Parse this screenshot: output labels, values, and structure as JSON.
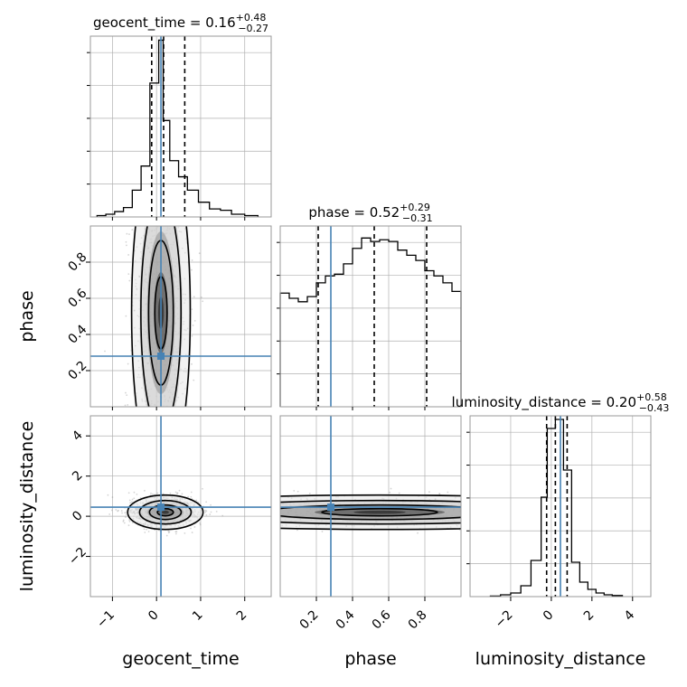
{
  "colors": {
    "truth": "#4682b4",
    "hist": "#000000",
    "frame": "#999999",
    "grid": "#b0b0b0",
    "density": "#000000"
  },
  "chart_data": [
    {
      "type": "histogram",
      "panel": "geocent_time-marginal",
      "title": {
        "param": "geocent_time",
        "median": "0.16",
        "plus": "+0.48",
        "minus": "−0.27"
      },
      "xlim": [
        -1.5,
        2.6
      ],
      "quantiles": [
        -0.11,
        0.16,
        0.64
      ],
      "truth": 0.1,
      "bins": [
        [
          -1.35,
          -1.15,
          0.01
        ],
        [
          -1.15,
          -0.95,
          0.02
        ],
        [
          -0.95,
          -0.75,
          0.04
        ],
        [
          -0.75,
          -0.55,
          0.07
        ],
        [
          -0.55,
          -0.35,
          0.2
        ],
        [
          -0.35,
          -0.15,
          0.38
        ],
        [
          -0.15,
          0.05,
          1.0
        ],
        [
          0.05,
          0.15,
          1.32
        ],
        [
          0.15,
          0.3,
          0.72
        ],
        [
          0.3,
          0.5,
          0.42
        ],
        [
          0.5,
          0.7,
          0.3
        ],
        [
          0.7,
          0.95,
          0.2
        ],
        [
          0.95,
          1.2,
          0.11
        ],
        [
          1.2,
          1.45,
          0.06
        ],
        [
          1.45,
          1.7,
          0.05
        ],
        [
          1.7,
          2.0,
          0.02
        ],
        [
          2.0,
          2.3,
          0.01
        ]
      ],
      "ymax": 1.35,
      "grid": true
    },
    {
      "type": "histogram",
      "panel": "phase-marginal",
      "title": {
        "param": "phase",
        "median": "0.52",
        "plus": "+0.29",
        "minus": "−0.31"
      },
      "xlim": [
        0.0,
        1.0
      ],
      "quantiles": [
        0.21,
        0.52,
        0.81
      ],
      "truth": 0.28,
      "bins": [
        [
          0.0,
          0.05,
          0.66
        ],
        [
          0.05,
          0.1,
          0.63
        ],
        [
          0.1,
          0.15,
          0.61
        ],
        [
          0.15,
          0.2,
          0.64
        ],
        [
          0.2,
          0.25,
          0.72
        ],
        [
          0.25,
          0.3,
          0.76
        ],
        [
          0.3,
          0.35,
          0.77
        ],
        [
          0.35,
          0.4,
          0.83
        ],
        [
          0.4,
          0.45,
          0.92
        ],
        [
          0.45,
          0.5,
          0.98
        ],
        [
          0.5,
          0.55,
          0.96
        ],
        [
          0.55,
          0.6,
          0.97
        ],
        [
          0.6,
          0.65,
          0.96
        ],
        [
          0.65,
          0.7,
          0.91
        ],
        [
          0.7,
          0.75,
          0.88
        ],
        [
          0.75,
          0.8,
          0.85
        ],
        [
          0.8,
          0.85,
          0.79
        ],
        [
          0.85,
          0.9,
          0.76
        ],
        [
          0.9,
          0.95,
          0.72
        ],
        [
          0.95,
          1.0,
          0.67
        ]
      ],
      "ymax": 1.05,
      "grid": true
    },
    {
      "type": "histogram",
      "panel": "luminosity_distance-marginal",
      "title": {
        "param": "luminosity_distance",
        "median": "0.20",
        "plus": "+0.58",
        "minus": "−0.43"
      },
      "xlim": [
        -4.0,
        4.9
      ],
      "quantiles": [
        -0.23,
        0.2,
        0.78
      ],
      "truth": 0.45,
      "bins": [
        [
          -3.0,
          -2.5,
          0.003
        ],
        [
          -2.5,
          -2.0,
          0.01
        ],
        [
          -2.0,
          -1.5,
          0.02
        ],
        [
          -1.5,
          -1.0,
          0.06
        ],
        [
          -1.0,
          -0.5,
          0.2
        ],
        [
          -0.5,
          -0.2,
          0.55
        ],
        [
          -0.2,
          0.2,
          0.93
        ],
        [
          0.2,
          0.6,
          0.98
        ],
        [
          0.6,
          1.0,
          0.7
        ],
        [
          1.0,
          1.4,
          0.19
        ],
        [
          1.4,
          1.8,
          0.08
        ],
        [
          1.8,
          2.2,
          0.04
        ],
        [
          2.2,
          2.6,
          0.02
        ],
        [
          2.6,
          3.0,
          0.01
        ],
        [
          3.0,
          3.5,
          0.006
        ]
      ],
      "ymax": 1.0,
      "grid": true
    },
    {
      "type": "heatmap",
      "panel": "geocent_time-vs-phase",
      "xlim": [
        -1.5,
        2.6
      ],
      "ylim": [
        0.0,
        1.0
      ],
      "truth": {
        "x": 0.1,
        "y": 0.28
      },
      "center": {
        "x": 0.1,
        "y": 0.52
      },
      "spread": {
        "x": 0.35,
        "y": 0.5
      },
      "grid": true
    },
    {
      "type": "heatmap",
      "panel": "geocent_time-vs-luminosity_distance",
      "xlim": [
        -1.5,
        2.6
      ],
      "ylim": [
        -4.0,
        5.0
      ],
      "truth": {
        "x": 0.1,
        "y": 0.45
      },
      "center": {
        "x": 0.2,
        "y": 0.2
      },
      "spread": {
        "x": 0.45,
        "y": 0.45
      },
      "grid": true
    },
    {
      "type": "heatmap",
      "panel": "phase-vs-luminosity_distance",
      "xlim": [
        0.0,
        1.0
      ],
      "ylim": [
        -4.0,
        5.0
      ],
      "truth": {
        "x": 0.28,
        "y": 0.45
      },
      "center": {
        "x": 0.55,
        "y": 0.2
      },
      "spread": {
        "x": 0.8,
        "y": 0.45
      },
      "grid": true
    }
  ],
  "axes": {
    "x_ticks": {
      "geocent_time": [
        "−1",
        "0",
        "1",
        "2"
      ],
      "phase": [
        "0.2",
        "0.4",
        "0.6",
        "0.8"
      ],
      "luminosity_distance": [
        "−2",
        "0",
        "2",
        "4"
      ]
    },
    "y_ticks": {
      "phase": [
        "0.2",
        "0.4",
        "0.6",
        "0.8"
      ],
      "luminosity_distance": [
        "−2",
        "0",
        "2",
        "4"
      ]
    },
    "x_labels": [
      "geocent_time",
      "phase",
      "luminosity_distance"
    ],
    "y_labels": [
      "phase",
      "luminosity_distance"
    ]
  }
}
